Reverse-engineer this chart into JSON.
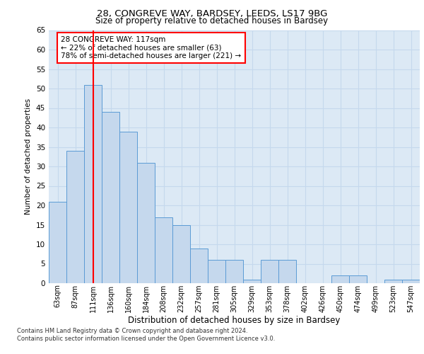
{
  "title_line1": "28, CONGREVE WAY, BARDSEY, LEEDS, LS17 9BG",
  "title_line2": "Size of property relative to detached houses in Bardsey",
  "xlabel": "Distribution of detached houses by size in Bardsey",
  "ylabel": "Number of detached properties",
  "categories": [
    "63sqm",
    "87sqm",
    "111sqm",
    "136sqm",
    "160sqm",
    "184sqm",
    "208sqm",
    "232sqm",
    "257sqm",
    "281sqm",
    "305sqm",
    "329sqm",
    "353sqm",
    "378sqm",
    "402sqm",
    "426sqm",
    "450sqm",
    "474sqm",
    "499sqm",
    "523sqm",
    "547sqm"
  ],
  "values": [
    21,
    34,
    51,
    44,
    39,
    31,
    17,
    15,
    9,
    6,
    6,
    1,
    6,
    6,
    0,
    0,
    2,
    2,
    0,
    1,
    1
  ],
  "bar_color": "#c5d8ed",
  "bar_edge_color": "#5b9bd5",
  "grid_color": "#c5d8ed",
  "red_line_index": 2,
  "annotation_text": "28 CONGREVE WAY: 117sqm\n← 22% of detached houses are smaller (63)\n78% of semi-detached houses are larger (221) →",
  "annotation_box_color": "white",
  "annotation_box_edge": "red",
  "ylim": [
    0,
    65
  ],
  "yticks": [
    0,
    5,
    10,
    15,
    20,
    25,
    30,
    35,
    40,
    45,
    50,
    55,
    60,
    65
  ],
  "footer_line1": "Contains HM Land Registry data © Crown copyright and database right 2024.",
  "footer_line2": "Contains public sector information licensed under the Open Government Licence v3.0.",
  "bg_color": "#dce9f5",
  "fig_bg": "#ffffff",
  "title1_fontsize": 9.5,
  "title2_fontsize": 8.5
}
